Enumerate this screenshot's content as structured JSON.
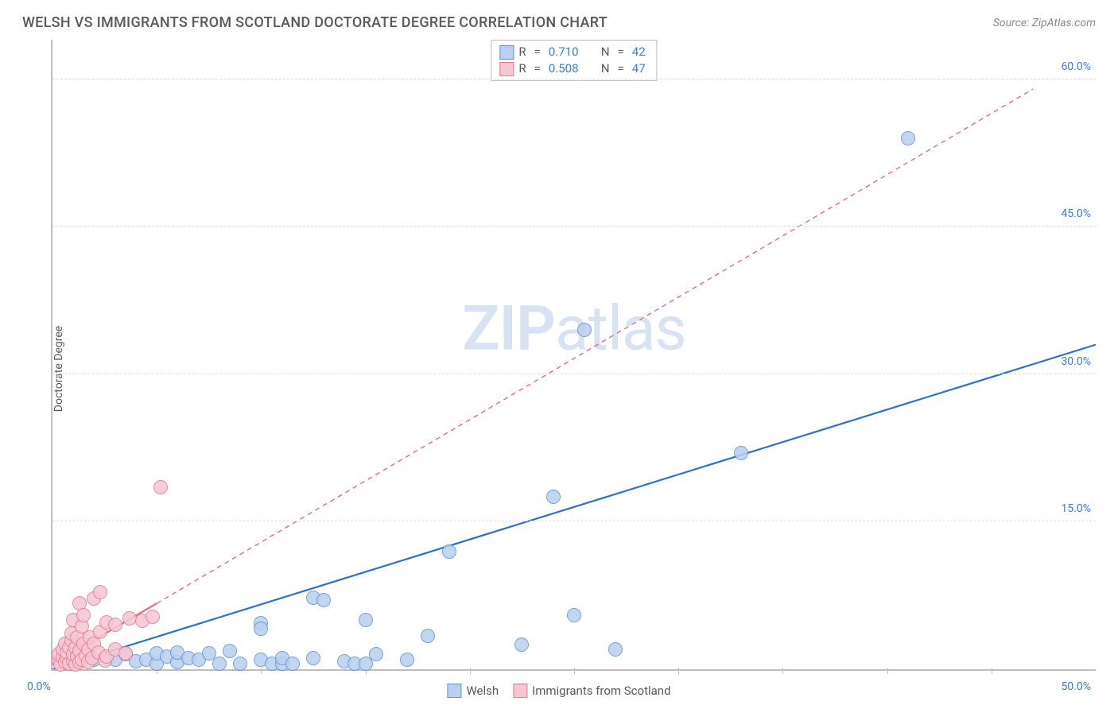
{
  "title": "WELSH VS IMMIGRANTS FROM SCOTLAND DOCTORATE DEGREE CORRELATION CHART",
  "source": "Source: ZipAtlas.com",
  "ylabel": "Doctorate Degree",
  "watermark_bold": "ZIP",
  "watermark_rest": "atlas",
  "chart": {
    "type": "scatter",
    "background_color": "#ffffff",
    "grid_color": "#dcdcdc",
    "axis_color": "#bfbfbf",
    "tick_color": "#3b7dd8",
    "xlim": [
      0,
      50
    ],
    "ylim": [
      0,
      64
    ],
    "yticks": [
      15,
      30,
      45,
      60
    ],
    "ytick_labels": [
      "15.0%",
      "30.0%",
      "45.0%",
      "60.0%"
    ],
    "xtick_marks": [
      5,
      10,
      15,
      20,
      25,
      30,
      35,
      40,
      45
    ],
    "xtick_left": "0.0%",
    "xtick_right": "50.0%",
    "point_radius": 9,
    "series": [
      {
        "key": "welsh",
        "label": "Welsh",
        "R": "0.710",
        "N": "42",
        "fill": "#b9d0ee",
        "stroke": "#5f94d8",
        "line_color": "#2f6fd0",
        "line_solid_from": [
          0,
          0
        ],
        "line_solid_to": [
          50,
          33
        ],
        "line_dash_from": null,
        "line_dash_to": null,
        "points": [
          [
            1,
            1
          ],
          [
            2,
            1
          ],
          [
            3,
            1
          ],
          [
            3.5,
            1.5
          ],
          [
            4,
            0.8
          ],
          [
            4.5,
            1
          ],
          [
            5,
            0.6
          ],
          [
            5,
            1.6
          ],
          [
            5.5,
            1.3
          ],
          [
            6,
            0.7
          ],
          [
            6,
            1.7
          ],
          [
            6.5,
            1.1
          ],
          [
            7,
            1
          ],
          [
            7.5,
            1.6
          ],
          [
            8,
            0.6
          ],
          [
            8.5,
            1.9
          ],
          [
            9,
            0.6
          ],
          [
            10,
            1
          ],
          [
            10,
            4.7
          ],
          [
            10,
            4.1
          ],
          [
            10.5,
            0.6
          ],
          [
            11,
            0.6
          ],
          [
            11,
            1.1
          ],
          [
            11.5,
            0.6
          ],
          [
            12.5,
            7.3
          ],
          [
            12.5,
            1.1
          ],
          [
            13,
            7
          ],
          [
            14,
            0.8
          ],
          [
            14.5,
            0.6
          ],
          [
            15,
            0.6
          ],
          [
            15,
            5
          ],
          [
            15.5,
            1.5
          ],
          [
            17,
            1
          ],
          [
            18,
            3.4
          ],
          [
            19,
            12
          ],
          [
            22.5,
            2.5
          ],
          [
            24,
            17.5
          ],
          [
            25,
            5.5
          ],
          [
            25.5,
            34.5
          ],
          [
            27,
            2
          ],
          [
            33,
            22
          ],
          [
            41,
            54
          ]
        ]
      },
      {
        "key": "scotland",
        "label": "Immigrants from Scotland",
        "R": "0.508",
        "N": "47",
        "fill": "#f6c6d2",
        "stroke": "#e07b95",
        "line_color": "#e26b87",
        "line_solid_from": [
          0,
          0.5
        ],
        "line_solid_to": [
          5,
          6.7
        ],
        "line_dash_from": [
          5,
          6.7
        ],
        "line_dash_to": [
          47,
          59
        ],
        "points": [
          [
            0.3,
            0.8
          ],
          [
            0.3,
            1.5
          ],
          [
            0.4,
            0.5
          ],
          [
            0.5,
            1.2
          ],
          [
            0.5,
            2
          ],
          [
            0.6,
            0.7
          ],
          [
            0.6,
            2.6
          ],
          [
            0.7,
            1.1
          ],
          [
            0.7,
            1.7
          ],
          [
            0.8,
            0.6
          ],
          [
            0.8,
            2.2
          ],
          [
            0.9,
            2.9
          ],
          [
            0.9,
            3.6
          ],
          [
            1,
            0.9
          ],
          [
            1,
            1.5
          ],
          [
            1,
            5
          ],
          [
            1.1,
            0.5
          ],
          [
            1.1,
            2.2
          ],
          [
            1.2,
            1.3
          ],
          [
            1.2,
            3.2
          ],
          [
            1.3,
            0.7
          ],
          [
            1.3,
            1.9
          ],
          [
            1.3,
            6.7
          ],
          [
            1.4,
            4.4
          ],
          [
            1.4,
            1
          ],
          [
            1.5,
            2.6
          ],
          [
            1.5,
            5.5
          ],
          [
            1.6,
            1.4
          ],
          [
            1.7,
            0.7
          ],
          [
            1.7,
            2
          ],
          [
            1.8,
            3.2
          ],
          [
            1.9,
            1.1
          ],
          [
            2,
            2.6
          ],
          [
            2,
            7.2
          ],
          [
            2.2,
            1.7
          ],
          [
            2.3,
            3.8
          ],
          [
            2.3,
            7.8
          ],
          [
            2.5,
            0.9
          ],
          [
            2.6,
            4.8
          ],
          [
            2.6,
            1.3
          ],
          [
            3,
            2
          ],
          [
            3,
            4.5
          ],
          [
            3.5,
            1.6
          ],
          [
            3.7,
            5.2
          ],
          [
            4.3,
            4.9
          ],
          [
            4.8,
            5.3
          ],
          [
            5.2,
            18.5
          ]
        ]
      }
    ]
  },
  "legend_top": {
    "R_label": "R",
    "N_label": "N",
    "eq": "="
  },
  "legend_bottom": {
    "items": [
      "Welsh",
      "Immigrants from Scotland"
    ]
  }
}
